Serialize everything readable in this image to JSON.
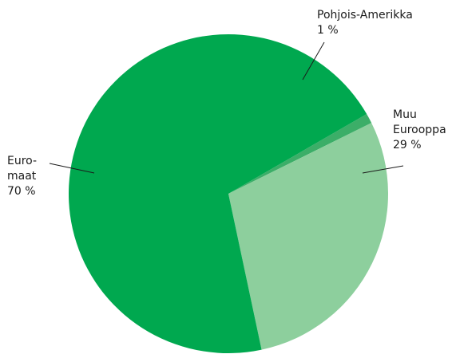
{
  "chart_data": {
    "type": "pie",
    "title": "",
    "slices": [
      {
        "label_lines": [
          "Pohjois-Amerikka",
          "1 %"
        ],
        "value": 1,
        "color": "#3cae68"
      },
      {
        "label_lines": [
          "Muu",
          "Eurooppa",
          "29 %"
        ],
        "value": 29,
        "color": "#8dcf9d"
      },
      {
        "label_lines": [
          "Euro-",
          "maat",
          "70 %"
        ],
        "value": 70,
        "color": "#00a84f"
      }
    ],
    "legend": "none",
    "labels": "outside-with-leader-lines"
  }
}
